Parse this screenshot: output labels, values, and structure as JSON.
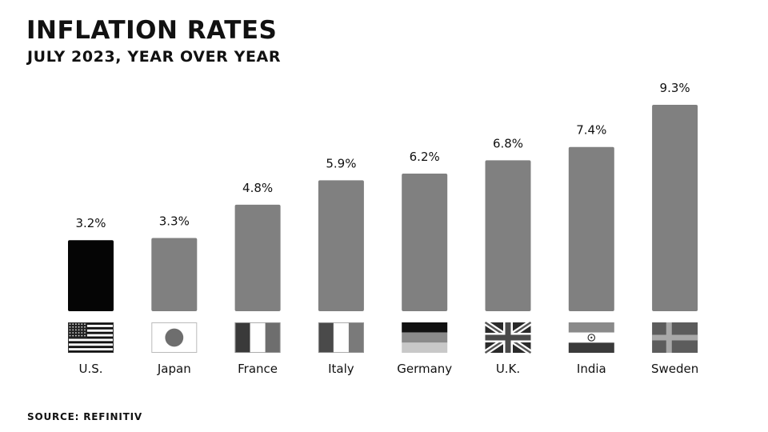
{
  "header": {
    "title": "INFLATION RATES",
    "subtitle": "JULY 2023, YEAR OVER YEAR"
  },
  "footer": {
    "source": "SOURCE: REFINITIV"
  },
  "colors": {
    "highlight_bar": "#050505",
    "bar": "#808080"
  },
  "chart_data": {
    "type": "bar",
    "title": "INFLATION RATES",
    "subtitle": "JULY 2023, YEAR OVER YEAR",
    "categories": [
      "U.S.",
      "Japan",
      "France",
      "Italy",
      "Germany",
      "U.K.",
      "India",
      "Sweden"
    ],
    "values": [
      3.2,
      3.3,
      4.8,
      5.9,
      6.2,
      6.8,
      7.4,
      9.3
    ],
    "value_labels": [
      "3.2%",
      "3.3%",
      "4.8%",
      "5.9%",
      "6.2%",
      "6.8%",
      "7.4%",
      "9.3%"
    ],
    "highlighted": "U.S.",
    "flags": [
      "us-flag-icon",
      "japan-flag-icon",
      "france-flag-icon",
      "italy-flag-icon",
      "germany-flag-icon",
      "uk-flag-icon",
      "india-flag-icon",
      "sweden-flag-icon"
    ],
    "ylim": [
      0,
      9.3
    ],
    "grid": false,
    "legend": "none"
  }
}
